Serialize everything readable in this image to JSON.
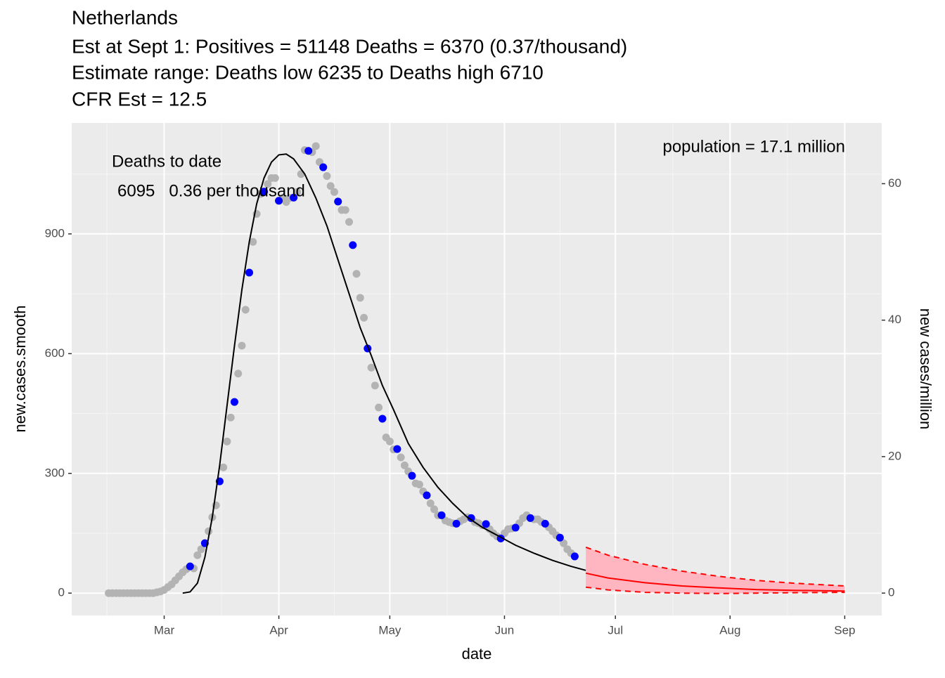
{
  "chart_data": {
    "type": "combo",
    "title": [
      "Netherlands",
      "Est at Sept 1: Positives = 51148 Deaths = 6370 (0.37/thousand)",
      "Estimate range: Deaths low 6235 to Deaths high 6710",
      "CFR Est = 12.5"
    ],
    "annotations": [
      "Deaths to date",
      "6095   0.36 per thousand",
      "population = 17.1 million"
    ],
    "x_label": "date",
    "y_label": "new.cases.smooth",
    "y2_label": "new cases/million",
    "xlim": [
      -25,
      194
    ],
    "xticks": [
      {
        "value": 0,
        "label": "Mar"
      },
      {
        "value": 31,
        "label": "Apr"
      },
      {
        "value": 61,
        "label": "May"
      },
      {
        "value": 92,
        "label": "Jun"
      },
      {
        "value": 122,
        "label": "Jul"
      },
      {
        "value": 153,
        "label": "Aug"
      },
      {
        "value": 184,
        "label": "Sep"
      }
    ],
    "ylim": [
      -56,
      1178
    ],
    "yticks": [
      0,
      300,
      600,
      900
    ],
    "y2lim": [
      -3.28,
      68.9
    ],
    "y2ticks": [
      0,
      20,
      40,
      60
    ],
    "grid": true,
    "series": [
      {
        "kind": "points",
        "color": "#b3b3b3",
        "x": [
          -15,
          -14,
          -13,
          -12,
          -11,
          -10,
          -9,
          -8,
          -7,
          -6,
          -5,
          -4,
          -3,
          -2,
          -1,
          0,
          1,
          2,
          3,
          4,
          5,
          6,
          7,
          8,
          9,
          10,
          11,
          12,
          13,
          14,
          15,
          16,
          17,
          18,
          19,
          20,
          21,
          22,
          23,
          24,
          25,
          26,
          27,
          28,
          29,
          30,
          31,
          32,
          33,
          34,
          35,
          36,
          37,
          38,
          39,
          40,
          41,
          42,
          43,
          44,
          45,
          46,
          47,
          48,
          49,
          50,
          51,
          52,
          53,
          54,
          55,
          56,
          57,
          58,
          59,
          60,
          61,
          62,
          63,
          64,
          65,
          66,
          67,
          68,
          69,
          70,
          71,
          72,
          73,
          74,
          75,
          76,
          77,
          78,
          79,
          80,
          81,
          82,
          83,
          84,
          85,
          86,
          87,
          88,
          89,
          90,
          91,
          92,
          93,
          94,
          95,
          96,
          97,
          98,
          99,
          100,
          101,
          102,
          103,
          104,
          105,
          106,
          107,
          108,
          109,
          110,
          111
        ],
        "values": [
          0,
          0,
          0,
          0,
          0,
          0,
          0,
          0,
          0,
          0,
          0,
          0,
          0,
          2,
          4,
          8,
          15,
          22,
          32,
          42,
          52,
          60,
          67,
          62,
          95,
          110,
          125,
          155,
          190,
          220,
          280,
          315,
          380,
          440,
          479,
          550,
          620,
          710,
          803,
          880,
          950,
          1000,
          1006,
          1025,
          1040,
          1040,
          983,
          990,
          980,
          990,
          991,
          1005,
          1050,
          1110,
          1108,
          1105,
          1120,
          1080,
          1067,
          1045,
          1020,
          1005,
          981,
          960,
          960,
          930,
          872,
          800,
          740,
          690,
          613,
          565,
          520,
          465,
          437,
          390,
          380,
          360,
          361,
          340,
          320,
          305,
          294,
          275,
          272,
          255,
          245,
          225,
          210,
          195,
          195,
          182,
          178,
          175,
          174,
          180,
          185,
          190,
          188,
          178,
          175,
          170,
          173,
          160,
          150,
          142,
          137,
          150,
          160,
          162,
          164,
          175,
          188,
          195,
          188,
          185,
          185,
          178,
          174,
          165,
          155,
          145,
          139,
          125,
          110,
          100,
          92
        ]
      },
      {
        "kind": "points",
        "color": "#0000ff",
        "x": [
          7,
          11,
          15,
          19,
          23,
          27,
          31,
          35,
          39,
          43,
          47,
          51,
          55,
          59,
          63,
          67,
          71,
          75,
          79,
          83,
          87,
          91,
          95,
          99,
          103,
          107,
          111
        ],
        "values": [
          67,
          125,
          280,
          479,
          803,
          1006,
          983,
          991,
          1108,
          1067,
          981,
          872,
          613,
          437,
          361,
          294,
          245,
          195,
          174,
          188,
          173,
          137,
          164,
          188,
          174,
          139,
          92
        ]
      },
      {
        "kind": "line",
        "color": "#000000",
        "x": [
          5,
          7,
          9,
          11,
          13,
          15,
          17,
          19,
          21,
          23,
          25,
          27,
          29,
          31,
          33,
          35,
          38,
          41,
          44,
          47,
          50,
          53,
          56,
          59,
          62,
          66,
          70,
          74,
          78,
          82,
          86,
          90,
          95,
          100,
          105,
          110,
          114
        ],
        "values": [
          0,
          3,
          25,
          90,
          190,
          320,
          470,
          620,
          760,
          880,
          975,
          1040,
          1080,
          1098,
          1100,
          1088,
          1050,
          990,
          920,
          835,
          750,
          665,
          595,
          520,
          460,
          375,
          315,
          265,
          225,
          190,
          165,
          145,
          120,
          100,
          82,
          67,
          57
        ]
      },
      {
        "kind": "band",
        "color": "#ff0000",
        "fill": "#ffb6c1",
        "x": [
          114,
          120,
          130,
          140,
          150,
          160,
          170,
          184
        ],
        "values": [
          50,
          38,
          26,
          18,
          13,
          9,
          7,
          5
        ],
        "upper": [
          115,
          95,
          72,
          55,
          42,
          32,
          25,
          18
        ],
        "lower": [
          15,
          8,
          2,
          0,
          -1,
          0,
          1,
          2
        ]
      }
    ]
  }
}
